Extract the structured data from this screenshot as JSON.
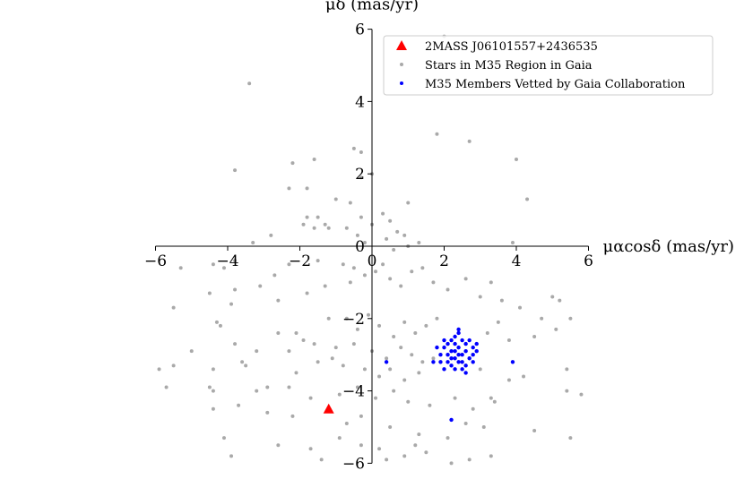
{
  "chart_data": {
    "type": "scatter",
    "xlabel": "μαcosδ (mas/yr)",
    "ylabel": "μδ (mas/yr)",
    "xlim": [
      -6,
      6
    ],
    "ylim": [
      -6,
      6
    ],
    "xticks": [
      "−6",
      "−4",
      "−2",
      "0",
      "2",
      "4",
      "6"
    ],
    "yticks": [
      "−6",
      "−4",
      "−2",
      "0",
      "2",
      "4",
      "6"
    ],
    "legend_placement": "top-right",
    "grid": false,
    "series": [
      {
        "name": "2MASS J06101557+2436535",
        "marker": "triangle",
        "color": "#ff0000",
        "points": [
          [
            -1.2,
            -4.5
          ]
        ]
      },
      {
        "name": "Stars in M35 Region in Gaia",
        "marker": "dot",
        "color": "#a9a9a9",
        "points": [
          [
            -3.4,
            4.5
          ],
          [
            -3.8,
            2.1
          ],
          [
            -2.2,
            2.3
          ],
          [
            -1.6,
            2.4
          ],
          [
            -0.5,
            2.7
          ],
          [
            -0.3,
            2.6
          ],
          [
            -0.3,
            1.9
          ],
          [
            0.0,
            2.0
          ],
          [
            1.8,
            3.1
          ],
          [
            2.7,
            2.9
          ],
          [
            4.0,
            2.4
          ],
          [
            4.3,
            1.3
          ],
          [
            -1.8,
            1.6
          ],
          [
            -2.3,
            1.6
          ],
          [
            -1.0,
            1.3
          ],
          [
            -0.6,
            1.2
          ],
          [
            1.0,
            1.2
          ],
          [
            2.0,
            5.8
          ],
          [
            -1.8,
            0.8
          ],
          [
            -1.5,
            0.8
          ],
          [
            -1.3,
            0.6
          ],
          [
            -1.9,
            0.6
          ],
          [
            -1.6,
            0.5
          ],
          [
            -1.2,
            0.5
          ],
          [
            -0.3,
            0.8
          ],
          [
            0.3,
            0.9
          ],
          [
            0.5,
            0.7
          ],
          [
            -0.7,
            0.5
          ],
          [
            0.0,
            0.6
          ],
          [
            0.7,
            0.4
          ],
          [
            -0.4,
            0.3
          ],
          [
            0.4,
            0.2
          ],
          [
            0.9,
            0.3
          ],
          [
            1.3,
            0.1
          ],
          [
            -2.8,
            0.3
          ],
          [
            -3.3,
            0.1
          ],
          [
            1.0,
            0.0
          ],
          [
            0.6,
            -0.1
          ],
          [
            -0.2,
            0.1
          ],
          [
            3.9,
            0.1
          ],
          [
            -4.4,
            -0.5
          ],
          [
            -3.8,
            -0.4
          ],
          [
            -4.1,
            -0.6
          ],
          [
            -2.3,
            -0.5
          ],
          [
            -2.7,
            -0.8
          ],
          [
            -1.5,
            -0.4
          ],
          [
            -0.8,
            -0.5
          ],
          [
            -0.5,
            -0.6
          ],
          [
            -5.3,
            -0.6
          ],
          [
            -4.5,
            -1.3
          ],
          [
            -3.8,
            -1.2
          ],
          [
            -3.9,
            -1.6
          ],
          [
            -3.1,
            -1.1
          ],
          [
            -2.6,
            -1.5
          ],
          [
            -1.3,
            -1.1
          ],
          [
            -1.8,
            -1.3
          ],
          [
            -0.6,
            -1.0
          ],
          [
            -0.2,
            -0.8
          ],
          [
            0.1,
            -0.7
          ],
          [
            0.3,
            -0.5
          ],
          [
            0.5,
            -0.9
          ],
          [
            0.8,
            -1.1
          ],
          [
            1.1,
            -0.7
          ],
          [
            1.4,
            -0.6
          ],
          [
            1.7,
            -1.0
          ],
          [
            2.1,
            -1.2
          ],
          [
            2.6,
            -0.9
          ],
          [
            3.0,
            -1.4
          ],
          [
            3.3,
            -1.0
          ],
          [
            3.6,
            -1.5
          ],
          [
            4.1,
            -1.7
          ],
          [
            5.0,
            -1.4
          ],
          [
            5.2,
            -1.5
          ],
          [
            5.5,
            -2.0
          ],
          [
            4.7,
            -2.0
          ],
          [
            5.1,
            -2.3
          ],
          [
            4.5,
            -2.5
          ],
          [
            -5.5,
            -1.7
          ],
          [
            -4.3,
            -2.1
          ],
          [
            -4.2,
            -2.2
          ],
          [
            -2.6,
            -2.4
          ],
          [
            -2.1,
            -2.4
          ],
          [
            -1.2,
            -2.0
          ],
          [
            -1.6,
            -2.7
          ],
          [
            -0.7,
            -2.0
          ],
          [
            -0.4,
            -2.3
          ],
          [
            -0.1,
            -1.9
          ],
          [
            0.2,
            -2.2
          ],
          [
            0.6,
            -2.5
          ],
          [
            0.9,
            -2.1
          ],
          [
            1.2,
            -2.4
          ],
          [
            1.5,
            -2.2
          ],
          [
            1.8,
            -2.0
          ],
          [
            3.2,
            -2.4
          ],
          [
            3.5,
            -2.1
          ],
          [
            3.8,
            -2.6
          ],
          [
            -5.0,
            -2.9
          ],
          [
            -3.8,
            -2.7
          ],
          [
            -3.2,
            -2.9
          ],
          [
            -2.3,
            -2.9
          ],
          [
            -1.9,
            -2.6
          ],
          [
            -1.0,
            -2.8
          ],
          [
            -0.5,
            -2.7
          ],
          [
            0.0,
            -2.9
          ],
          [
            0.4,
            -3.1
          ],
          [
            0.8,
            -2.8
          ],
          [
            1.1,
            -3.0
          ],
          [
            1.4,
            -3.2
          ],
          [
            1.7,
            -3.1
          ],
          [
            -5.9,
            -3.4
          ],
          [
            -5.5,
            -3.3
          ],
          [
            -4.4,
            -3.4
          ],
          [
            -3.6,
            -3.2
          ],
          [
            -3.5,
            -3.3
          ],
          [
            -2.1,
            -3.5
          ],
          [
            -1.5,
            -3.2
          ],
          [
            -1.1,
            -3.1
          ],
          [
            -0.8,
            -3.3
          ],
          [
            -0.2,
            -3.4
          ],
          [
            0.2,
            -3.6
          ],
          [
            0.5,
            -3.4
          ],
          [
            0.9,
            -3.7
          ],
          [
            1.3,
            -3.5
          ],
          [
            3.0,
            -3.4
          ],
          [
            3.8,
            -3.7
          ],
          [
            4.2,
            -3.6
          ],
          [
            5.4,
            -3.4
          ],
          [
            -5.7,
            -3.9
          ],
          [
            -4.5,
            -3.9
          ],
          [
            -4.4,
            -4.0
          ],
          [
            -2.9,
            -3.9
          ],
          [
            -2.3,
            -3.9
          ],
          [
            -1.7,
            -4.2
          ],
          [
            -0.9,
            -4.1
          ],
          [
            -0.4,
            -3.9
          ],
          [
            0.1,
            -4.2
          ],
          [
            0.6,
            -4.0
          ],
          [
            1.0,
            -4.3
          ],
          [
            1.6,
            -4.4
          ],
          [
            2.3,
            -4.2
          ],
          [
            2.8,
            -4.5
          ],
          [
            3.3,
            -4.2
          ],
          [
            3.4,
            -4.3
          ],
          [
            5.4,
            -4.0
          ],
          [
            5.8,
            -4.1
          ],
          [
            -3.2,
            -4.0
          ],
          [
            -3.7,
            -4.4
          ],
          [
            -4.4,
            -4.5
          ],
          [
            -2.9,
            -4.6
          ],
          [
            -2.2,
            -4.7
          ],
          [
            -0.7,
            -4.9
          ],
          [
            -0.3,
            -4.7
          ],
          [
            0.5,
            -5.0
          ],
          [
            1.3,
            -5.2
          ],
          [
            2.1,
            -5.3
          ],
          [
            2.6,
            -4.9
          ],
          [
            3.1,
            -5.0
          ],
          [
            4.5,
            -5.1
          ],
          [
            5.5,
            -5.3
          ],
          [
            -4.1,
            -5.3
          ],
          [
            -2.6,
            -5.5
          ],
          [
            -1.7,
            -5.6
          ],
          [
            -0.3,
            -5.5
          ],
          [
            0.2,
            -5.6
          ],
          [
            0.9,
            -5.8
          ],
          [
            1.5,
            -5.7
          ],
          [
            2.7,
            -5.9
          ],
          [
            3.3,
            -5.8
          ],
          [
            -3.9,
            -5.8
          ],
          [
            -1.4,
            -5.9
          ],
          [
            0.4,
            -5.9
          ],
          [
            2.2,
            -6.0
          ],
          [
            1.2,
            -5.5
          ],
          [
            -0.9,
            -5.3
          ]
        ]
      },
      {
        "name": "M35 Members Vetted by Gaia Collaboration",
        "marker": "dot",
        "color": "#0000ff",
        "points": [
          [
            2.3,
            -2.7
          ],
          [
            2.4,
            -2.8
          ],
          [
            2.2,
            -2.9
          ],
          [
            2.5,
            -3.0
          ],
          [
            2.3,
            -3.1
          ],
          [
            2.1,
            -3.0
          ],
          [
            2.6,
            -2.9
          ],
          [
            2.4,
            -3.2
          ],
          [
            2.0,
            -2.8
          ],
          [
            2.7,
            -3.1
          ],
          [
            2.2,
            -3.3
          ],
          [
            2.5,
            -2.6
          ],
          [
            2.3,
            -2.5
          ],
          [
            2.1,
            -3.2
          ],
          [
            2.6,
            -3.3
          ],
          [
            2.8,
            -2.8
          ],
          [
            1.9,
            -3.0
          ],
          [
            2.4,
            -2.4
          ],
          [
            2.0,
            -2.6
          ],
          [
            2.7,
            -2.6
          ],
          [
            2.3,
            -3.4
          ],
          [
            2.5,
            -3.4
          ],
          [
            1.8,
            -2.8
          ],
          [
            2.8,
            -3.2
          ],
          [
            2.9,
            -2.9
          ],
          [
            2.2,
            -2.6
          ],
          [
            2.4,
            -3.0
          ],
          [
            2.6,
            -2.7
          ],
          [
            2.1,
            -2.7
          ],
          [
            2.3,
            -2.9
          ],
          [
            2.5,
            -3.2
          ],
          [
            2.2,
            -3.1
          ],
          [
            1.9,
            -3.2
          ],
          [
            2.8,
            -3.0
          ],
          [
            1.7,
            -3.2
          ],
          [
            2.0,
            -3.4
          ],
          [
            2.6,
            -3.5
          ],
          [
            2.9,
            -2.7
          ],
          [
            3.9,
            -3.2
          ],
          [
            0.4,
            -3.2
          ],
          [
            2.2,
            -4.8
          ],
          [
            2.4,
            -2.3
          ]
        ]
      }
    ]
  },
  "legend": {
    "items": [
      {
        "label": "2MASS J06101557+2436535"
      },
      {
        "label": "Stars in M35 Region in Gaia"
      },
      {
        "label": "M35 Members Vetted by Gaia Collaboration"
      }
    ]
  }
}
